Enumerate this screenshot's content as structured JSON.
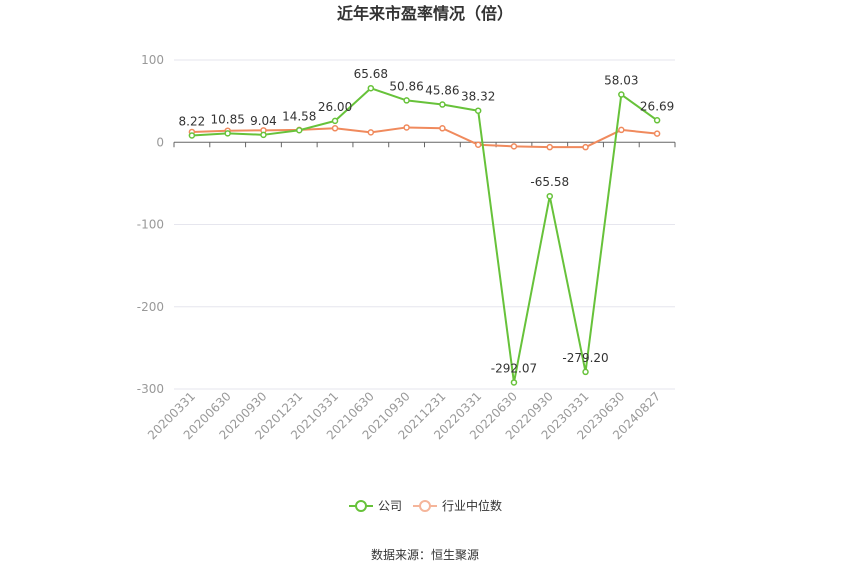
{
  "chart_data": {
    "type": "line",
    "title": "近年来市盈率情况（倍）",
    "categories": [
      "20200331",
      "20200630",
      "20200930",
      "20201231",
      "20210331",
      "20210630",
      "20210930",
      "20211231",
      "20220331",
      "20220630",
      "20220930",
      "20230331",
      "20230630",
      "20240827"
    ],
    "series": [
      {
        "name": "公司",
        "color": "#67c23a",
        "values": [
          8.22,
          10.85,
          9.04,
          14.58,
          26.0,
          65.68,
          50.86,
          45.86,
          38.32,
          -292.07,
          -65.58,
          -279.2,
          58.03,
          26.69
        ],
        "labels": [
          "8.22",
          "10.85",
          "9.04",
          "14.58",
          "26.00",
          "65.68",
          "50.86",
          "45.86",
          "38.32",
          "-292.07",
          "-65.58",
          "-279.20",
          "58.03",
          "26.69"
        ]
      },
      {
        "name": "行业中位数",
        "color": "#f08a5d",
        "values": [
          12.5,
          14.0,
          14.5,
          15.0,
          17.0,
          12.0,
          18.0,
          17.0,
          -3.0,
          -5.0,
          -6.0,
          -6.0,
          15.0,
          10.5
        ]
      }
    ],
    "ylim": [
      -300,
      100
    ],
    "yticks": [
      100,
      0,
      -100,
      -200,
      -300
    ],
    "grid": true,
    "legend": "bottom"
  },
  "source": "数据来源：恒生聚源"
}
